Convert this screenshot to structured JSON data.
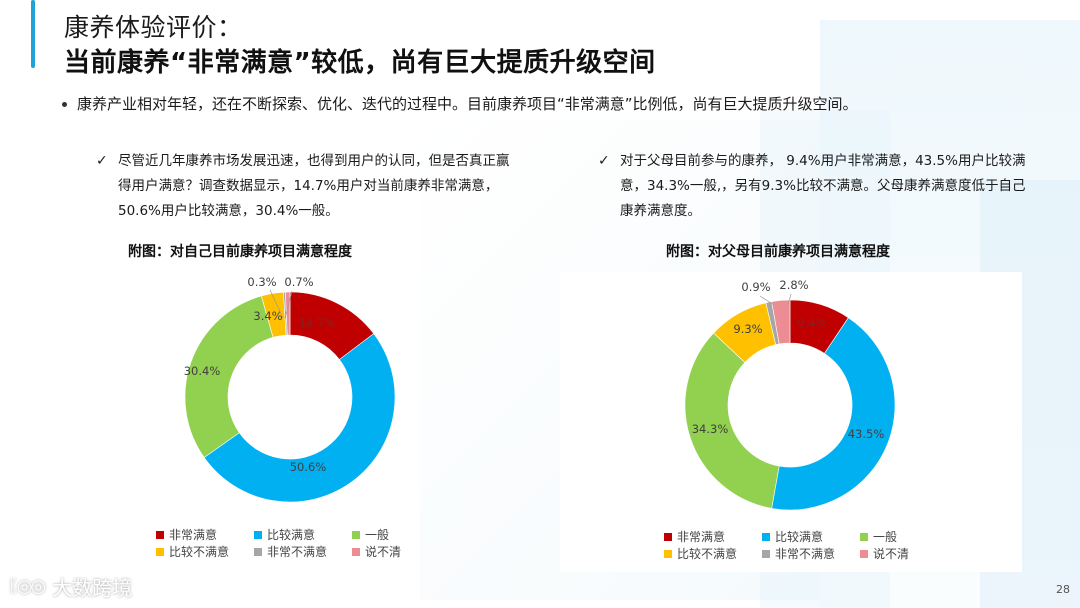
{
  "header": {
    "title_line1": "康养体验评价：",
    "title_line2": "当前康养“非常满意”较低，尚有巨大提质升级空间"
  },
  "summary_bullet": "康养产业相对年轻，还在不断探索、优化、迭代的过程中。目前康养项目“非常满意”比例低，尚有巨大提质升级空间。",
  "left_note": {
    "check_icon": "✓",
    "text": "尽管近几年康养市场发展迅速，也得到用户的认同，但是否真正赢得用户满意？调查数据显示，14.7%用户对当前康养非常满意，50.6%用户比较满意，30.4%一般。"
  },
  "right_note": {
    "check_icon": "✓",
    "text": "对于父母目前参与的康养， 9.4%用户非常满意，43.5%用户比较满意，34.3%一般,，另有9.3%比较不满意。父母康养满意度低于自己康养满意度。"
  },
  "legend": [
    {
      "label": "非常满意",
      "color": "#c00000"
    },
    {
      "label": "比较满意",
      "color": "#00b0f0"
    },
    {
      "label": "一般",
      "color": "#92d050"
    },
    {
      "label": "比较不满意",
      "color": "#ffc000"
    },
    {
      "label": "非常不满意",
      "color": "#a6a6a6"
    },
    {
      "label": "说不清",
      "color": "#ec8d94"
    }
  ],
  "chart_data": [
    {
      "type": "pie",
      "subtype": "donut",
      "title": "附图：对自己目前康养项目满意程度",
      "categories": [
        "非常满意",
        "比较满意",
        "一般",
        "比较不满意",
        "非常不满意",
        "说不清"
      ],
      "values": [
        14.7,
        50.6,
        30.4,
        3.4,
        0.3,
        0.7
      ],
      "labels": [
        "14.7%",
        "50.6%",
        "30.4%",
        "3.4%",
        "0.3%",
        "0.7%"
      ],
      "colors": [
        "#c00000",
        "#00b0f0",
        "#92d050",
        "#ffc000",
        "#a6a6a6",
        "#ec8d94"
      ],
      "legend_position": "bottom"
    },
    {
      "type": "pie",
      "subtype": "donut",
      "title": "附图：对父母目前康养项目满意程度",
      "categories": [
        "非常满意",
        "比较满意",
        "一般",
        "比较不满意",
        "非常不满意",
        "说不清"
      ],
      "values": [
        9.4,
        43.5,
        34.3,
        9.3,
        0.9,
        2.8
      ],
      "labels": [
        "9.4%",
        "43.5%",
        "34.3%",
        "9.3%",
        "0.9%",
        "2.8%"
      ],
      "colors": [
        "#c00000",
        "#00b0f0",
        "#92d050",
        "#ffc000",
        "#a6a6a6",
        "#ec8d94"
      ],
      "legend_position": "bottom"
    }
  ],
  "footer": {
    "logo_mark": "ᛕ◎◎",
    "logo_text": "大数跨境",
    "page_number": "28"
  }
}
